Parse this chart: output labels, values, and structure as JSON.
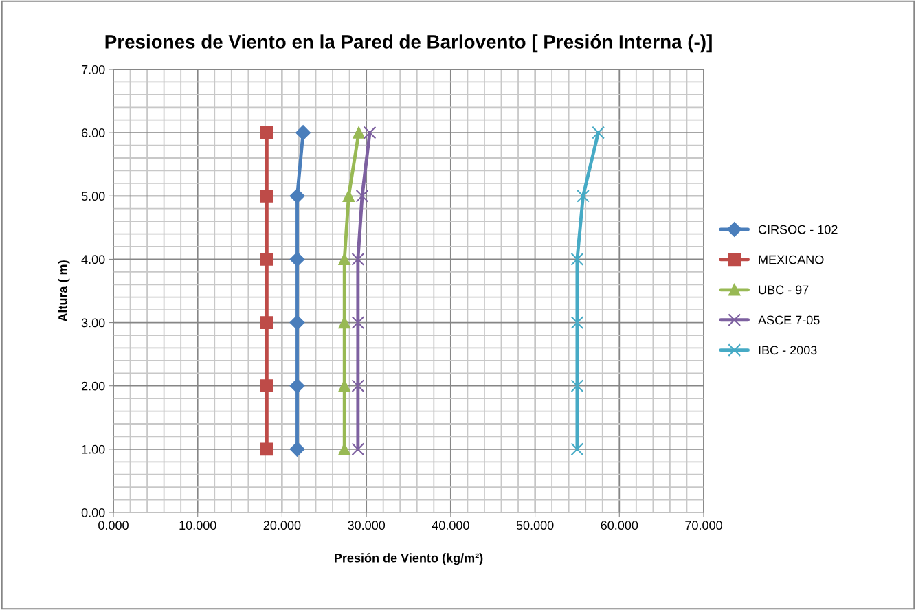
{
  "chart_data": {
    "type": "line",
    "title": "Presiones de Viento en la Pared de Barlovento [ Presión Interna (-)]",
    "xlabel": "Presión de Viento (kg/m²)",
    "ylabel": "Altura ( m)",
    "xlim": [
      0,
      70
    ],
    "ylim": [
      0,
      7
    ],
    "xticks": [
      {
        "value": 0,
        "label": "0.000"
      },
      {
        "value": 10,
        "label": "10.000"
      },
      {
        "value": 20,
        "label": "20.000"
      },
      {
        "value": 30,
        "label": "30.000"
      },
      {
        "value": 40,
        "label": "40.000"
      },
      {
        "value": 50,
        "label": "50.000"
      },
      {
        "value": 60,
        "label": "60.000"
      },
      {
        "value": 70,
        "label": "70.000"
      }
    ],
    "yticks": [
      {
        "value": 0,
        "label": "0.00"
      },
      {
        "value": 1,
        "label": "1.00"
      },
      {
        "value": 2,
        "label": "2.00"
      },
      {
        "value": 3,
        "label": "3.00"
      },
      {
        "value": 4,
        "label": "4.00"
      },
      {
        "value": 5,
        "label": "5.00"
      },
      {
        "value": 6,
        "label": "6.00"
      },
      {
        "value": 7,
        "label": "7.00"
      }
    ],
    "grid": true,
    "legend": "right",
    "line_style": "solid",
    "series": [
      {
        "name": "CIRSOC - 102",
        "color": "#4a7ebb",
        "marker": "diamond",
        "x": [
          21.8,
          21.8,
          21.8,
          21.8,
          21.8,
          22.5
        ],
        "values": [
          1,
          2,
          3,
          4,
          5,
          6
        ]
      },
      {
        "name": "MEXICANO",
        "color": "#be4b48",
        "marker": "square",
        "x": [
          18.2,
          18.2,
          18.2,
          18.2,
          18.2,
          18.2
        ],
        "values": [
          1,
          2,
          3,
          4,
          5,
          6
        ]
      },
      {
        "name": "UBC - 97",
        "color": "#98b954",
        "marker": "triangle",
        "x": [
          27.4,
          27.4,
          27.4,
          27.4,
          27.9,
          29.1
        ],
        "values": [
          1,
          2,
          3,
          4,
          5,
          6
        ]
      },
      {
        "name": "ASCE 7-05",
        "color": "#7d60a0",
        "marker": "cross",
        "x": [
          29.0,
          29.0,
          29.0,
          29.0,
          29.5,
          30.4
        ],
        "values": [
          1,
          2,
          3,
          4,
          5,
          6
        ]
      },
      {
        "name": "IBC - 2003",
        "color": "#46aac5",
        "marker": "cross",
        "x": [
          55.0,
          55.0,
          55.0,
          55.0,
          55.7,
          57.5
        ],
        "values": [
          1,
          2,
          3,
          4,
          5,
          6
        ]
      }
    ]
  }
}
